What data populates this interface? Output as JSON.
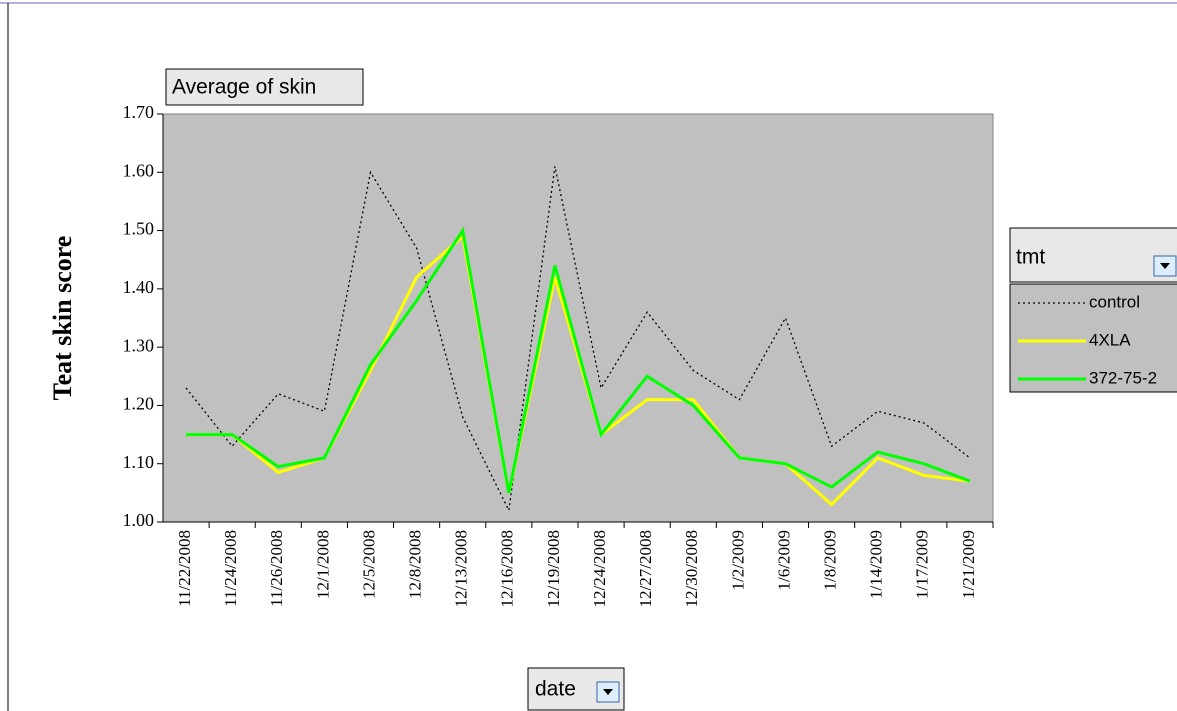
{
  "chart_data": {
    "type": "line",
    "pivot_field": "Average of skin",
    "ylabel": "Teat skin score",
    "xlabel": "date",
    "legend_title": "tmt",
    "categories": [
      "11/22/2008",
      "11/24/2008",
      "11/26/2008",
      "12/1/2008",
      "12/5/2008",
      "12/8/2008",
      "12/13/2008",
      "12/16/2008",
      "12/19/2008",
      "12/24/2008",
      "12/27/2008",
      "12/30/2008",
      "1/2/2009",
      "1/6/2009",
      "1/8/2009",
      "1/14/2009",
      "1/17/2009",
      "1/21/2009"
    ],
    "series": [
      {
        "name": "control",
        "color": "#000000",
        "dashed": true,
        "values": [
          1.23,
          1.13,
          1.22,
          1.19,
          1.6,
          1.47,
          1.18,
          1.02,
          1.61,
          1.23,
          1.36,
          1.26,
          1.21,
          1.35,
          1.13,
          1.19,
          1.17,
          1.11
        ]
      },
      {
        "name": "4XLA",
        "color": "#ffff00",
        "values": [
          1.15,
          1.15,
          1.085,
          1.11,
          1.26,
          1.42,
          1.49,
          1.05,
          1.42,
          1.15,
          1.21,
          1.21,
          1.11,
          1.1,
          1.03,
          1.11,
          1.08,
          1.07
        ]
      },
      {
        "name": "372-75-2",
        "color": "#00ff00",
        "values": [
          1.15,
          1.15,
          1.095,
          1.11,
          1.27,
          1.38,
          1.5,
          1.05,
          1.44,
          1.15,
          1.25,
          1.2,
          1.11,
          1.1,
          1.06,
          1.12,
          1.1,
          1.07
        ]
      }
    ],
    "ylim": [
      1.0,
      1.7
    ],
    "yticks": [
      {
        "value": 1.0,
        "label": "1.00"
      },
      {
        "value": 1.1,
        "label": "1.10"
      },
      {
        "value": 1.2,
        "label": "1.20"
      },
      {
        "value": 1.3,
        "label": "1.30"
      },
      {
        "value": 1.4,
        "label": "1.40"
      },
      {
        "value": 1.5,
        "label": "1.50"
      },
      {
        "value": 1.6,
        "label": "1.60"
      },
      {
        "value": 1.7,
        "label": "1.70"
      }
    ],
    "plot_background": "#c0c0c0"
  }
}
